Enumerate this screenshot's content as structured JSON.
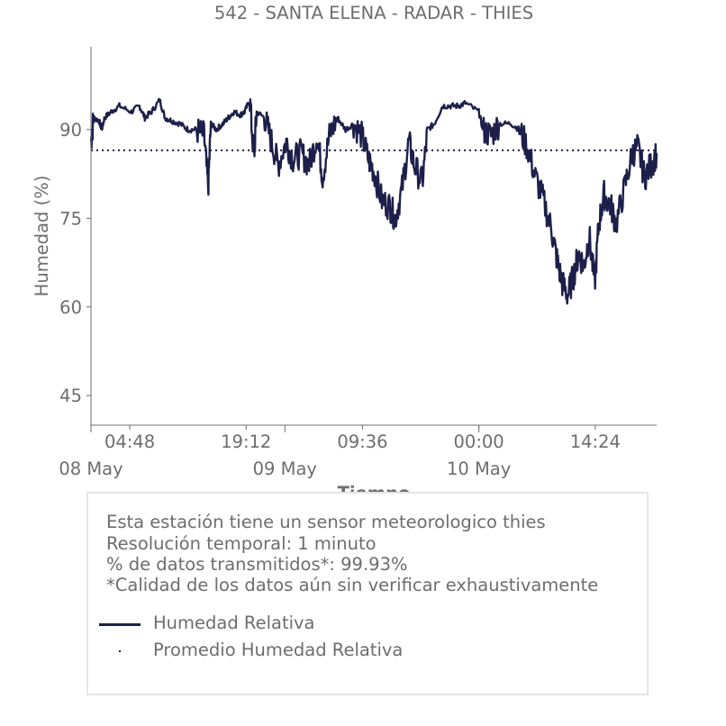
{
  "chart_data": {
    "type": "line",
    "title": "542 - SANTA ELENA - RADAR - THIES",
    "xlabel": "Tiempo",
    "ylabel": "Humedad (%)",
    "ylim": [
      40,
      104
    ],
    "xlim": [
      "2024-05-08 00:00",
      "2024-05-10 22:00"
    ],
    "x_ticks": [
      "04:48",
      "19:12",
      "09:36",
      "00:00",
      "14:24"
    ],
    "x_major_ticks": [
      "08 May",
      "09 May",
      "10 May"
    ],
    "y_ticks": [
      45,
      60,
      75,
      90
    ],
    "grid": false,
    "average": 86.5,
    "series": [
      {
        "name": "Humedad Relativa",
        "color": "#1d1f4a",
        "points": [
          [
            "2024-05-08 00:00",
            88
          ],
          [
            "2024-05-08 00:20",
            92
          ],
          [
            "2024-05-08 01:00",
            91.5
          ],
          [
            "2024-05-08 01:20",
            90
          ],
          [
            "2024-05-08 01:40",
            92
          ],
          [
            "2024-05-08 02:30",
            93
          ],
          [
            "2024-05-08 03:30",
            94
          ],
          [
            "2024-05-08 05:00",
            93
          ],
          [
            "2024-05-08 06:00",
            94
          ],
          [
            "2024-05-08 06:40",
            92
          ],
          [
            "2024-05-08 07:30",
            93
          ],
          [
            "2024-05-08 08:30",
            95
          ],
          [
            "2024-05-08 09:10",
            92
          ],
          [
            "2024-05-08 10:00",
            91.5
          ],
          [
            "2024-05-08 11:00",
            91
          ],
          [
            "2024-05-08 12:00",
            90
          ],
          [
            "2024-05-08 13:00",
            90
          ],
          [
            "2024-05-08 14:00",
            89
          ],
          [
            "2024-05-08 14:30",
            80
          ],
          [
            "2024-05-08 14:50",
            91
          ],
          [
            "2024-05-08 15:30",
            90
          ],
          [
            "2024-05-08 16:20",
            91
          ],
          [
            "2024-05-08 17:00",
            92
          ],
          [
            "2024-05-08 17:40",
            93
          ],
          [
            "2024-05-08 18:30",
            92.5
          ],
          [
            "2024-05-08 19:00",
            93
          ],
          [
            "2024-05-08 19:40",
            95
          ],
          [
            "2024-05-08 20:10",
            85
          ],
          [
            "2024-05-08 20:30",
            93
          ],
          [
            "2024-05-08 21:30",
            92
          ],
          [
            "2024-05-08 22:20",
            88
          ],
          [
            "2024-05-08 23:10",
            84
          ],
          [
            "2024-05-09 00:10",
            88
          ],
          [
            "2024-05-09 01:00",
            85
          ],
          [
            "2024-05-09 02:00",
            86
          ],
          [
            "2024-05-09 03:00",
            84
          ],
          [
            "2024-05-09 04:00",
            89
          ],
          [
            "2024-05-09 04:40",
            82
          ],
          [
            "2024-05-09 05:30",
            89
          ],
          [
            "2024-05-09 06:30",
            92
          ],
          [
            "2024-05-09 07:30",
            90
          ],
          [
            "2024-05-09 08:30",
            91
          ],
          [
            "2024-05-09 09:30",
            89
          ],
          [
            "2024-05-09 10:20",
            85
          ],
          [
            "2024-05-09 11:00",
            83
          ],
          [
            "2024-05-09 12:00",
            78
          ],
          [
            "2024-05-09 13:00",
            77
          ],
          [
            "2024-05-09 13:40",
            75
          ],
          [
            "2024-05-09 14:30",
            80
          ],
          [
            "2024-05-09 15:20",
            88
          ],
          [
            "2024-05-09 16:00",
            84
          ],
          [
            "2024-05-09 17:00",
            81
          ],
          [
            "2024-05-09 17:40",
            90
          ],
          [
            "2024-05-09 18:30",
            91
          ],
          [
            "2024-05-09 19:30",
            94
          ],
          [
            "2024-05-09 20:30",
            94
          ],
          [
            "2024-05-09 21:30",
            94
          ],
          [
            "2024-05-09 22:20",
            94.5
          ],
          [
            "2024-05-10 00:00",
            93
          ],
          [
            "2024-05-10 00:30",
            90
          ],
          [
            "2024-05-10 01:30",
            89
          ],
          [
            "2024-05-10 02:30",
            91
          ],
          [
            "2024-05-10 04:00",
            91
          ],
          [
            "2024-05-10 05:00",
            90
          ],
          [
            "2024-05-10 06:00",
            87
          ],
          [
            "2024-05-10 07:00",
            82
          ],
          [
            "2024-05-10 08:00",
            78
          ],
          [
            "2024-05-10 09:00",
            73
          ],
          [
            "2024-05-10 09:40",
            68
          ],
          [
            "2024-05-10 10:20",
            64
          ],
          [
            "2024-05-10 11:00",
            62
          ],
          [
            "2024-05-10 11:40",
            65
          ],
          [
            "2024-05-10 12:20",
            69
          ],
          [
            "2024-05-10 13:00",
            67
          ],
          [
            "2024-05-10 13:40",
            72
          ],
          [
            "2024-05-10 14:20",
            64
          ],
          [
            "2024-05-10 14:50",
            74
          ],
          [
            "2024-05-10 15:30",
            79
          ],
          [
            "2024-05-10 16:20",
            77
          ],
          [
            "2024-05-10 17:00",
            74
          ],
          [
            "2024-05-10 18:00",
            80
          ],
          [
            "2024-05-10 19:00",
            86
          ],
          [
            "2024-05-10 19:40",
            87
          ],
          [
            "2024-05-10 20:30",
            82
          ],
          [
            "2024-05-10 21:20",
            84
          ],
          [
            "2024-05-10 22:00",
            86
          ]
        ]
      },
      {
        "name": "Promedio Humedad Relativa",
        "color": "#1d1f4a",
        "style": "dotted"
      }
    ]
  },
  "info": {
    "line1": "Esta estación tiene un sensor meteorologico thies",
    "line2": "Resolución temporal: 1 minuto",
    "line3": "% de datos transmitidos*: 99.93%",
    "line4": "*Calidad de los datos aún sin verificar exhaustivamente"
  },
  "legend": {
    "line_label": "Humedad Relativa",
    "avg_label": "Promedio Humedad Relativa"
  },
  "colors": {
    "series": "#1d1f4a",
    "text": "#6d6d6d",
    "axis": "#6d6d6d",
    "box_border": "#e5e5e5"
  }
}
